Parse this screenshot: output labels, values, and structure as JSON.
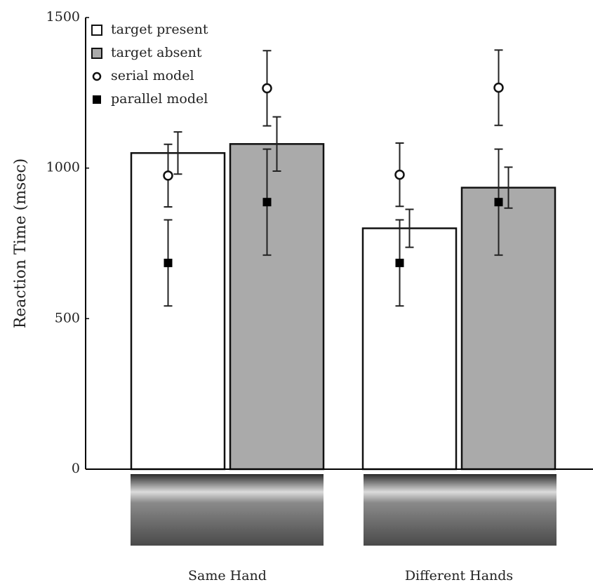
{
  "chart_data": {
    "type": "bar",
    "y_label": "Reaction Time (msec)",
    "categories": [
      "Same Hand",
      "Different Hands"
    ],
    "ylim": [
      0,
      1500
    ],
    "yticks": [
      0,
      500,
      1000,
      1500
    ],
    "series": [
      {
        "name": "target present",
        "type": "bar",
        "color": "#ffffff",
        "values": [
          1050,
          800
        ],
        "errors": [
          70,
          63
        ]
      },
      {
        "name": "target absent",
        "type": "bar",
        "color": "#aaaaaa",
        "values": [
          1080,
          935
        ],
        "errors": [
          90,
          68
        ]
      },
      {
        "name": "serial model",
        "type": "scatter",
        "marker": "circle",
        "color": "#ffffff",
        "values": [
          975,
          1265,
          978,
          1267
        ],
        "errors": [
          104,
          125,
          105,
          125
        ]
      },
      {
        "name": "parallel model",
        "type": "scatter",
        "marker": "square",
        "color": "#000000",
        "values": [
          685,
          887,
          685,
          887
        ],
        "errors": [
          143,
          176,
          143,
          176
        ]
      }
    ]
  }
}
